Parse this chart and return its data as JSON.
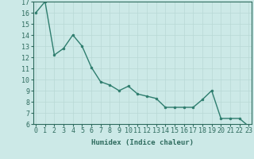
{
  "x": [
    0,
    1,
    2,
    3,
    4,
    5,
    6,
    7,
    8,
    9,
    10,
    11,
    12,
    13,
    14,
    15,
    16,
    17,
    18,
    19,
    20,
    21,
    22,
    23
  ],
  "y": [
    16.0,
    17.0,
    12.2,
    12.8,
    14.0,
    13.0,
    11.1,
    9.8,
    9.5,
    9.0,
    9.4,
    8.7,
    8.5,
    8.3,
    7.5,
    7.5,
    7.5,
    7.5,
    8.2,
    9.0,
    6.5,
    6.5,
    6.5,
    5.8
  ],
  "line_color": "#2e7d6e",
  "marker": "o",
  "marker_size": 2.0,
  "line_width": 1.0,
  "bg_color": "#cce9e7",
  "grid_color": "#b8d8d5",
  "xlabel": "Humidex (Indice chaleur)",
  "ylim": [
    6,
    17
  ],
  "xlim": [
    -0.3,
    23.3
  ],
  "yticks": [
    6,
    7,
    8,
    9,
    10,
    11,
    12,
    13,
    14,
    15,
    16,
    17
  ],
  "xticks": [
    0,
    1,
    2,
    3,
    4,
    5,
    6,
    7,
    8,
    9,
    10,
    11,
    12,
    13,
    14,
    15,
    16,
    17,
    18,
    19,
    20,
    21,
    22,
    23
  ],
  "xlabel_fontsize": 6.5,
  "tick_fontsize": 6.0,
  "axis_color": "#2e6b5e"
}
